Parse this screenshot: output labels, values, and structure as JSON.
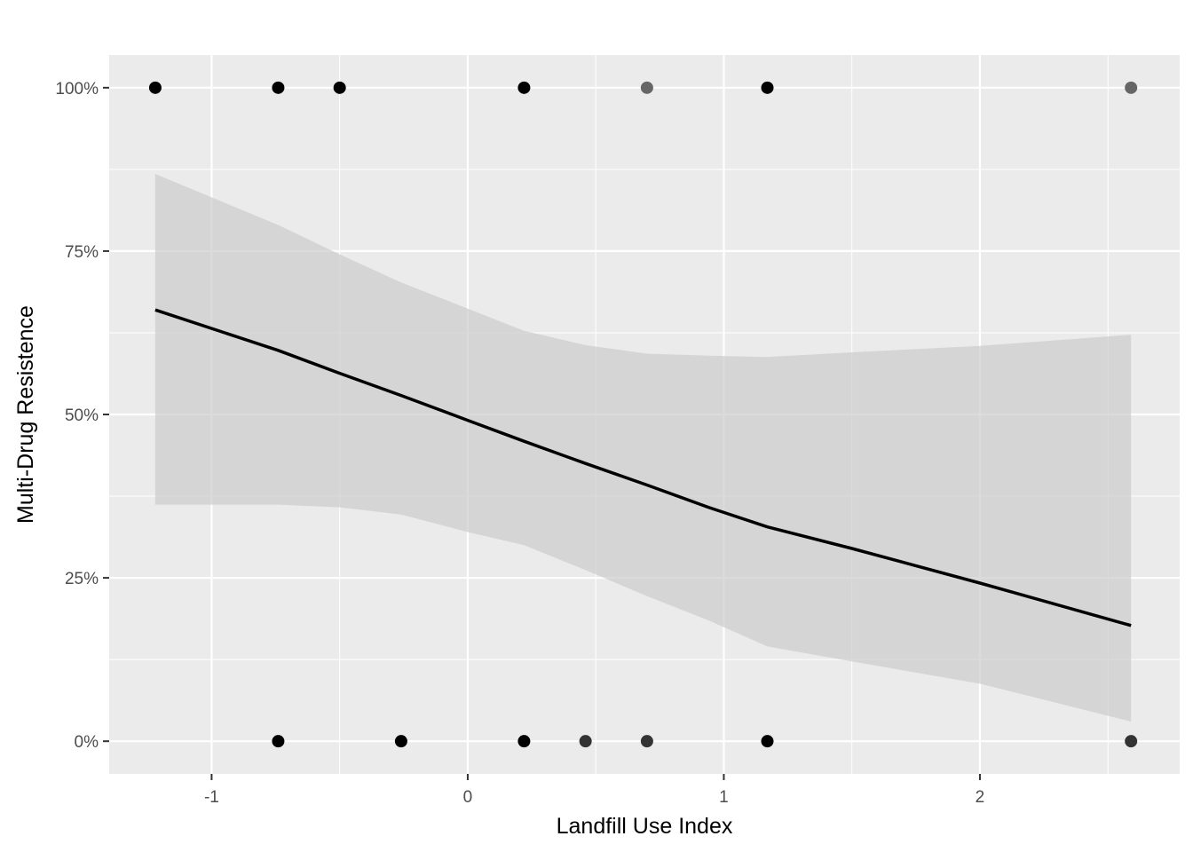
{
  "chart_data": {
    "type": "scatter",
    "xlabel": "Landfill Use Index",
    "ylabel": "Multi-Drug Resistence",
    "xlim": [
      -1.4,
      2.78
    ],
    "ylim": [
      -0.05,
      1.05
    ],
    "x_ticks": [
      -1,
      0,
      1,
      2
    ],
    "x_tick_labels": [
      "-1",
      "0",
      "1",
      "2"
    ],
    "y_ticks": [
      0,
      0.25,
      0.5,
      0.75,
      1
    ],
    "y_tick_labels": [
      "0%",
      "25%",
      "50%",
      "75%",
      "100%"
    ],
    "grid": true,
    "colors": {
      "panel": "#ebebeb",
      "grid": "#ffffff",
      "ribbon": "#cccccc",
      "line": "#000000",
      "point_dark": "#000000",
      "point_mid": "#333333",
      "point_light": "#666666"
    },
    "points": [
      {
        "x": -1.22,
        "y": 1,
        "shade": "dark"
      },
      {
        "x": -0.74,
        "y": 1,
        "shade": "dark"
      },
      {
        "x": -0.5,
        "y": 1,
        "shade": "dark"
      },
      {
        "x": 0.22,
        "y": 1,
        "shade": "dark"
      },
      {
        "x": 0.7,
        "y": 1,
        "shade": "light"
      },
      {
        "x": 1.17,
        "y": 1,
        "shade": "dark"
      },
      {
        "x": 2.59,
        "y": 1,
        "shade": "light"
      },
      {
        "x": -0.74,
        "y": 0,
        "shade": "dark"
      },
      {
        "x": -0.26,
        "y": 0,
        "shade": "dark"
      },
      {
        "x": 0.22,
        "y": 0,
        "shade": "dark"
      },
      {
        "x": 0.46,
        "y": 0,
        "shade": "mid"
      },
      {
        "x": 0.7,
        "y": 0,
        "shade": "mid"
      },
      {
        "x": 1.17,
        "y": 0,
        "shade": "dark"
      },
      {
        "x": 2.59,
        "y": 0,
        "shade": "mid"
      }
    ],
    "fit": {
      "x": [
        -1.22,
        -0.74,
        -0.5,
        -0.26,
        0.0,
        0.22,
        0.46,
        0.7,
        0.94,
        1.17,
        1.5,
        2.0,
        2.59
      ],
      "y": [
        0.66,
        0.598,
        0.563,
        0.529,
        0.491,
        0.459,
        0.425,
        0.392,
        0.358,
        0.328,
        0.295,
        0.242,
        0.177
      ],
      "lower": [
        0.362,
        0.362,
        0.358,
        0.347,
        0.32,
        0.3,
        0.262,
        0.222,
        0.185,
        0.145,
        0.122,
        0.088,
        0.03
      ],
      "upper": [
        0.868,
        0.79,
        0.745,
        0.702,
        0.662,
        0.628,
        0.606,
        0.593,
        0.59,
        0.588,
        0.595,
        0.605,
        0.622
      ]
    }
  }
}
